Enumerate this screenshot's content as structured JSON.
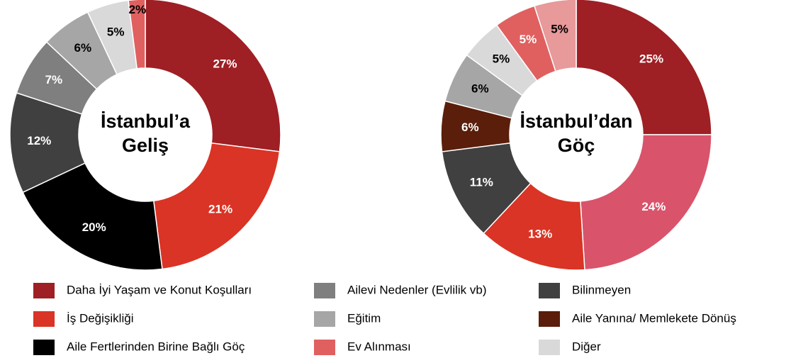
{
  "chart_data": [
    {
      "type": "pie",
      "title": [
        "İstanbul’a",
        "Geliş"
      ],
      "values": [
        27,
        21,
        20,
        12,
        7,
        6,
        5,
        2
      ],
      "value_labels": [
        "27%",
        "21%",
        "20%",
        "12%",
        "7%",
        "6%",
        "5%",
        "2%"
      ],
      "colors": [
        "#9e1f24",
        "#d93425",
        "#000000",
        "#404040",
        "#7f7f7f",
        "#a6a6a6",
        "#d9d9d9",
        "#e06060"
      ],
      "label_colors": [
        "#ffffff",
        "#ffffff",
        "#ffffff",
        "#ffffff",
        "#ffffff",
        "#000000",
        "#000000",
        "#000000"
      ]
    },
    {
      "type": "pie",
      "title": [
        "İstanbul’dan",
        "Göç"
      ],
      "values": [
        25,
        24,
        13,
        11,
        6,
        6,
        5,
        5,
        5
      ],
      "value_labels": [
        "25%",
        "24%",
        "13%",
        "11%",
        "6%",
        "6%",
        "5%",
        "5%",
        "5%"
      ],
      "colors": [
        "#9e1f24",
        "#d9546b",
        "#d93425",
        "#404040",
        "#5a1e0a",
        "#a6a6a6",
        "#d9d9d9",
        "#e06060",
        "#e89999"
      ],
      "label_colors": [
        "#ffffff",
        "#ffffff",
        "#ffffff",
        "#ffffff",
        "#ffffff",
        "#000000",
        "#000000",
        "#ffffff",
        "#000000"
      ]
    }
  ],
  "legend": [
    {
      "name": "Daha İyi Yaşam ve Konut Koşulları",
      "color": "#9e1f24"
    },
    {
      "name": "İş Değişikliği",
      "color": "#d93425"
    },
    {
      "name": "Aile Fertlerinden Birine Bağlı Göç",
      "color": "#000000"
    },
    {
      "name": "Ailevi Nedenler (Evlilik vb)",
      "color": "#7f7f7f"
    },
    {
      "name": "Eğitim",
      "color": "#a6a6a6"
    },
    {
      "name": "Ev Alınması",
      "color": "#e06060"
    },
    {
      "name": "Bilinmeyen",
      "color": "#404040"
    },
    {
      "name": "Aile Yanına/ Memlekete Dönüş",
      "color": "#5a1e0a"
    },
    {
      "name": "Diğer",
      "color": "#d9d9d9"
    }
  ]
}
